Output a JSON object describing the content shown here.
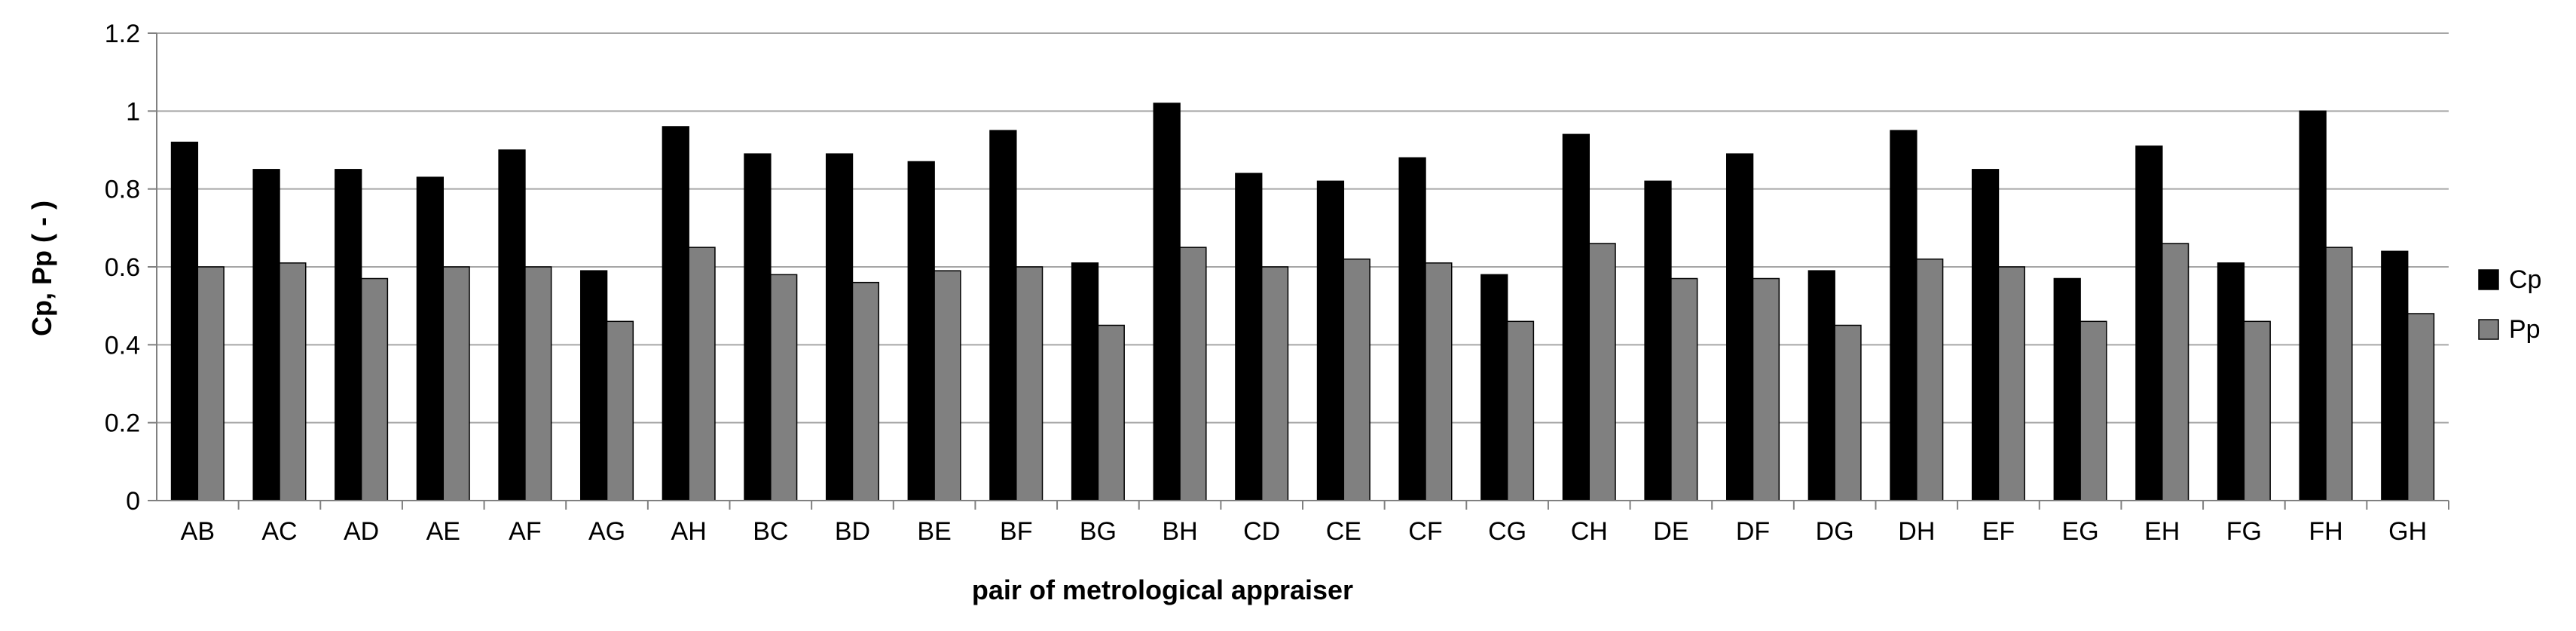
{
  "chart_data": {
    "type": "bar",
    "title": "",
    "xlabel": "pair of metrological appraiser",
    "ylabel": "Cp, Pp ( - )",
    "ylim": [
      0,
      1.2
    ],
    "yticks": [
      "0",
      "0.2",
      "0.4",
      "0.6",
      "0.8",
      "1",
      "1.2"
    ],
    "grid": true,
    "legend_position": "right",
    "categories": [
      "AB",
      "AC",
      "AD",
      "AE",
      "AF",
      "AG",
      "AH",
      "BC",
      "BD",
      "BE",
      "BF",
      "BG",
      "BH",
      "CD",
      "CE",
      "CF",
      "CG",
      "CH",
      "DE",
      "DF",
      "DG",
      "DH",
      "EF",
      "EG",
      "EH",
      "FG",
      "FH",
      "GH"
    ],
    "series": [
      {
        "name": "Cp",
        "color": "#000000",
        "values": [
          0.92,
          0.85,
          0.85,
          0.83,
          0.9,
          0.59,
          0.96,
          0.89,
          0.89,
          0.87,
          0.95,
          0.61,
          1.02,
          0.84,
          0.82,
          0.88,
          0.58,
          0.94,
          0.82,
          0.89,
          0.59,
          0.95,
          0.85,
          0.57,
          0.91,
          0.61,
          1.0,
          0.64
        ]
      },
      {
        "name": "Pp",
        "color": "#808080",
        "values": [
          0.6,
          0.61,
          0.57,
          0.6,
          0.6,
          0.46,
          0.65,
          0.58,
          0.56,
          0.59,
          0.6,
          0.45,
          0.65,
          0.6,
          0.62,
          0.61,
          0.46,
          0.66,
          0.57,
          0.57,
          0.45,
          0.62,
          0.6,
          0.46,
          0.66,
          0.46,
          0.65,
          0.48
        ]
      }
    ]
  }
}
